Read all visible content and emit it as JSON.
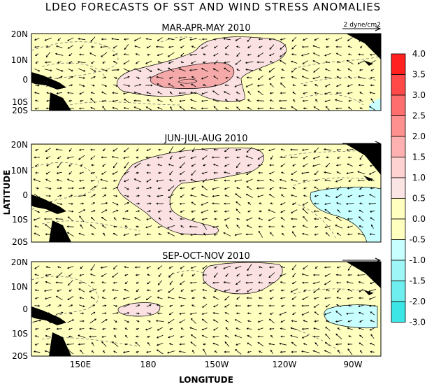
{
  "title": "LDEO FORECASTS OF SST AND WIND STRESS ANOMALIES",
  "ylabel": "LATITUDE",
  "xlabel": "LONGITUDE",
  "scale_label": "2 dyne/cm2",
  "lat_ticks": [
    "20N",
    "10N",
    "0",
    "10S",
    "20S"
  ],
  "lon_ticks": [
    "150E",
    "180",
    "150W",
    "120W",
    "90W"
  ],
  "panels": [
    {
      "title": "MAR-APR-MAY 2010",
      "id": "mam"
    },
    {
      "title": "JUN-JUL-AUG 2010",
      "id": "jja"
    },
    {
      "title": "SEP-OCT-NOV 2010",
      "id": "son"
    }
  ],
  "colorbar": {
    "labels": [
      "4.0",
      "3.5",
      "3.0",
      "2.5",
      "2.0",
      "1.5",
      "1.0",
      "0.5",
      "0.0",
      "-0.5",
      "-1.0",
      "-1.5",
      "-2.0",
      "-3.0"
    ],
    "colors": [
      "#ff2020",
      "#ff4848",
      "#ff6e6e",
      "#ff9090",
      "#ffb0b0",
      "#ffd2d2",
      "#fbe4e4",
      "#ffffc0",
      "#ffffc0",
      "#c8ffff",
      "#9ff6f6",
      "#6eeeee",
      "#3ce6e6",
      "#00e6f0"
    ]
  },
  "colors": {
    "land": "#000000",
    "neutral": "#ffffc0",
    "warm_light": "#fbe1e1",
    "warm_medium": "#f5a9a9",
    "cool_light": "#c8ffff"
  }
}
